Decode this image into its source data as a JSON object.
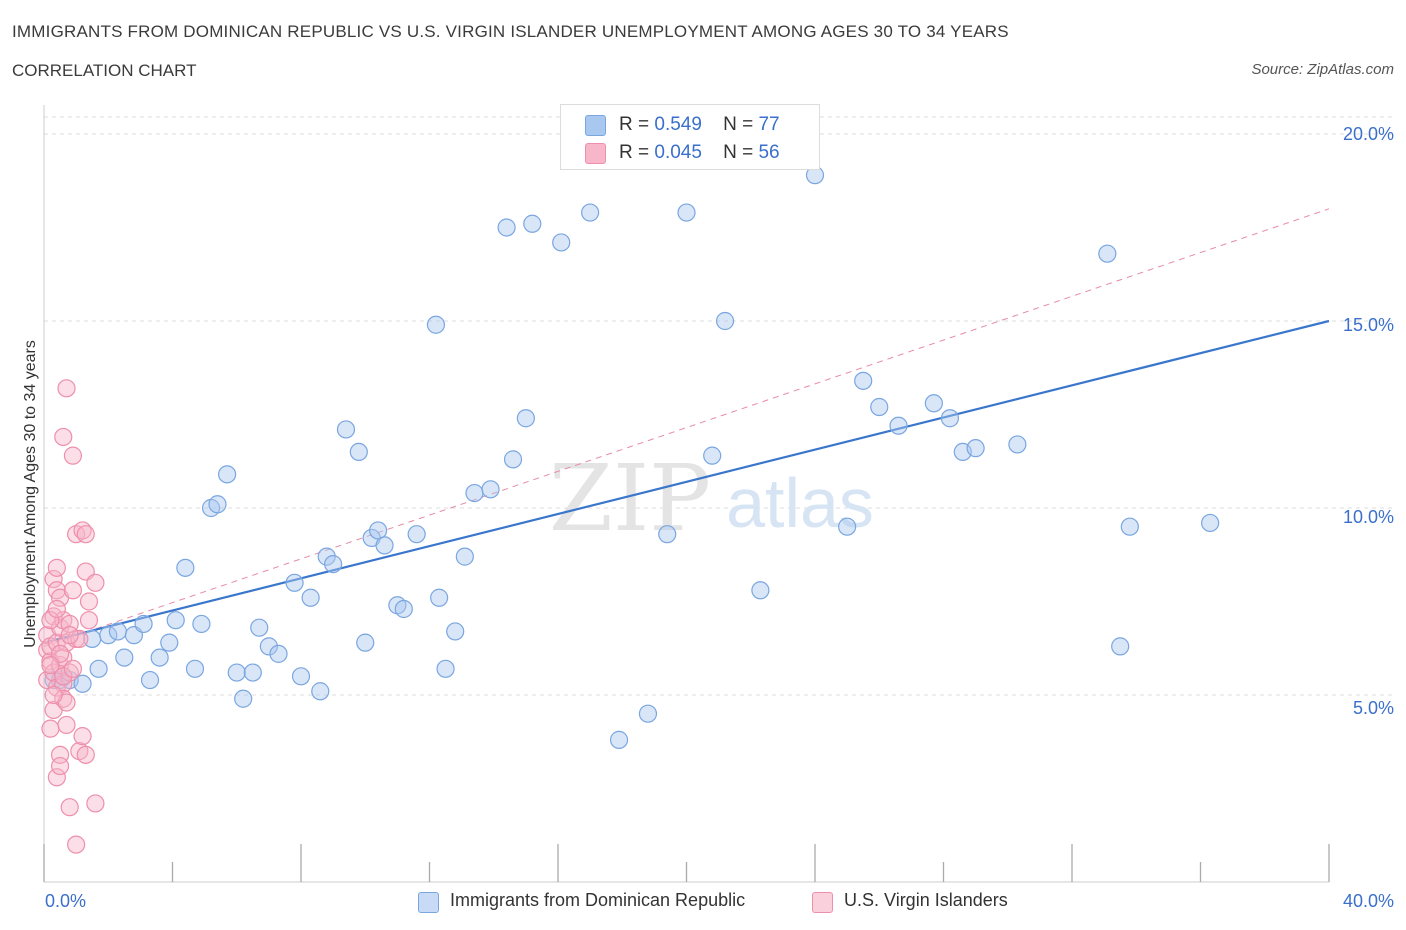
{
  "header": {
    "title": "IMMIGRANTS FROM DOMINICAN REPUBLIC VS U.S. VIRGIN ISLANDER UNEMPLOYMENT AMONG AGES 30 TO 34 YEARS",
    "subtitle": "CORRELATION CHART",
    "source": "Source: ZipAtlas.com"
  },
  "watermark": {
    "zip": "ZIP",
    "atlas": "atlas"
  },
  "legend_top": [
    {
      "r_label": "R =",
      "r_value": "0.549",
      "n_label": "N =",
      "n_value": "77",
      "color": "#a9c8f0"
    },
    {
      "r_label": "R =",
      "r_value": "0.045",
      "n_label": "N =",
      "n_value": "56",
      "color": "#f7b6c9"
    }
  ],
  "legend_bottom": [
    {
      "label": "Immigrants from Dominican Republic",
      "color": "#a9c8f0"
    },
    {
      "label": "U.S. Virgin Islanders",
      "color": "#f7b6c9"
    }
  ],
  "colors": {
    "blue_fill": "#a9c8f0",
    "blue_stroke": "#7aa6e0",
    "blue_line": "#3a77cc",
    "pink_fill": "#f7b6c9",
    "pink_stroke": "#ee8fab",
    "pink_line": "#e88aa5",
    "grid": "#dddddd",
    "tick_text": "#3a6fcc"
  },
  "chart_data": {
    "type": "scatter",
    "title": "IMMIGRANTS FROM DOMINICAN REPUBLIC VS U.S. VIRGIN ISLANDER UNEMPLOYMENT AMONG AGES 30 TO 34 YEARS",
    "xlabel": "",
    "ylabel": "Unemployment Among Ages 30 to 34 years",
    "xlim": [
      0,
      40
    ],
    "ylim": [
      0,
      20
    ],
    "x_tick_labels": [
      "0.0%",
      "40.0%"
    ],
    "y_ticks": [
      5,
      10,
      15,
      20
    ],
    "y_tick_labels": [
      "5.0%",
      "10.0%",
      "15.0%",
      "20.0%"
    ],
    "grid": "horizontal dashed",
    "legend_placement": "top-center and bottom",
    "series": [
      {
        "name": "Immigrants from Dominican Republic",
        "trend": {
          "x": [
            0,
            40
          ],
          "y": [
            6.4,
            15.0
          ],
          "style": "solid"
        },
        "points": [
          [
            0.3,
            5.4
          ],
          [
            0.5,
            5.4
          ],
          [
            0.6,
            5.5
          ],
          [
            0.8,
            5.4
          ],
          [
            1.2,
            5.3
          ],
          [
            1.5,
            6.5
          ],
          [
            1.7,
            5.7
          ],
          [
            2.0,
            6.6
          ],
          [
            2.3,
            6.7
          ],
          [
            2.5,
            6.0
          ],
          [
            2.8,
            6.6
          ],
          [
            3.1,
            6.9
          ],
          [
            3.3,
            5.4
          ],
          [
            3.6,
            6.0
          ],
          [
            3.9,
            6.4
          ],
          [
            4.1,
            7.0
          ],
          [
            4.4,
            8.4
          ],
          [
            4.7,
            5.7
          ],
          [
            4.9,
            6.9
          ],
          [
            5.2,
            10.0
          ],
          [
            5.4,
            10.1
          ],
          [
            5.7,
            10.9
          ],
          [
            6.0,
            5.6
          ],
          [
            6.2,
            4.9
          ],
          [
            6.5,
            5.6
          ],
          [
            6.7,
            6.8
          ],
          [
            7.0,
            6.3
          ],
          [
            7.3,
            6.1
          ],
          [
            7.8,
            8.0
          ],
          [
            8.0,
            5.5
          ],
          [
            8.3,
            7.6
          ],
          [
            8.6,
            5.1
          ],
          [
            8.8,
            8.7
          ],
          [
            9.0,
            8.5
          ],
          [
            9.4,
            12.1
          ],
          [
            9.8,
            11.5
          ],
          [
            10.0,
            6.4
          ],
          [
            10.2,
            9.2
          ],
          [
            10.4,
            9.4
          ],
          [
            10.6,
            9.0
          ],
          [
            11.0,
            7.4
          ],
          [
            11.2,
            7.3
          ],
          [
            11.6,
            9.3
          ],
          [
            12.2,
            14.9
          ],
          [
            12.3,
            7.6
          ],
          [
            12.5,
            5.7
          ],
          [
            12.8,
            6.7
          ],
          [
            13.1,
            8.7
          ],
          [
            13.4,
            10.4
          ],
          [
            13.9,
            10.5
          ],
          [
            14.4,
            17.5
          ],
          [
            14.6,
            11.3
          ],
          [
            15.0,
            12.4
          ],
          [
            15.2,
            17.6
          ],
          [
            16.1,
            17.1
          ],
          [
            17.0,
            17.9
          ],
          [
            17.9,
            3.8
          ],
          [
            18.8,
            4.5
          ],
          [
            19.4,
            9.3
          ],
          [
            20.0,
            17.9
          ],
          [
            20.8,
            11.4
          ],
          [
            21.2,
            15.0
          ],
          [
            22.3,
            7.8
          ],
          [
            24.0,
            18.9
          ],
          [
            25.0,
            9.5
          ],
          [
            25.5,
            13.4
          ],
          [
            26.0,
            12.7
          ],
          [
            26.6,
            12.2
          ],
          [
            27.7,
            12.8
          ],
          [
            28.2,
            12.4
          ],
          [
            28.6,
            11.5
          ],
          [
            29.0,
            11.6
          ],
          [
            30.3,
            11.7
          ],
          [
            33.1,
            16.8
          ],
          [
            33.5,
            6.3
          ],
          [
            33.8,
            9.5
          ],
          [
            36.3,
            9.6
          ]
        ]
      },
      {
        "name": "U.S. Virgin Islanders",
        "trend": {
          "x": [
            0,
            40
          ],
          "y": [
            6.3,
            18.0
          ],
          "style": "dashed"
        },
        "points": [
          [
            0.1,
            5.4
          ],
          [
            0.1,
            6.2
          ],
          [
            0.1,
            6.6
          ],
          [
            0.2,
            5.9
          ],
          [
            0.2,
            6.3
          ],
          [
            0.2,
            4.1
          ],
          [
            0.3,
            5.6
          ],
          [
            0.3,
            7.1
          ],
          [
            0.3,
            8.1
          ],
          [
            0.3,
            4.6
          ],
          [
            0.4,
            5.2
          ],
          [
            0.4,
            6.4
          ],
          [
            0.4,
            7.8
          ],
          [
            0.4,
            8.4
          ],
          [
            0.4,
            2.8
          ],
          [
            0.5,
            5.8
          ],
          [
            0.5,
            6.8
          ],
          [
            0.5,
            7.6
          ],
          [
            0.5,
            3.4
          ],
          [
            0.5,
            3.1
          ],
          [
            0.6,
            11.9
          ],
          [
            0.6,
            5.3
          ],
          [
            0.6,
            6.0
          ],
          [
            0.6,
            7.0
          ],
          [
            0.6,
            4.9
          ],
          [
            0.7,
            4.8
          ],
          [
            0.7,
            4.2
          ],
          [
            0.7,
            6.4
          ],
          [
            0.8,
            5.6
          ],
          [
            0.8,
            6.9
          ],
          [
            0.8,
            2.0
          ],
          [
            0.9,
            7.8
          ],
          [
            0.7,
            13.2
          ],
          [
            0.9,
            11.4
          ],
          [
            1.0,
            9.3
          ],
          [
            1.0,
            6.5
          ],
          [
            1.0,
            1.0
          ],
          [
            1.1,
            3.5
          ],
          [
            1.1,
            6.5
          ],
          [
            1.2,
            9.4
          ],
          [
            1.2,
            3.9
          ],
          [
            1.3,
            3.4
          ],
          [
            1.3,
            8.3
          ],
          [
            1.3,
            9.3
          ],
          [
            1.4,
            7.0
          ],
          [
            1.4,
            7.5
          ],
          [
            1.6,
            2.1
          ],
          [
            1.6,
            8.0
          ],
          [
            0.2,
            7.0
          ],
          [
            0.3,
            5.0
          ],
          [
            0.5,
            6.1
          ],
          [
            0.6,
            5.5
          ],
          [
            0.8,
            6.6
          ],
          [
            0.9,
            5.7
          ],
          [
            0.4,
            7.3
          ],
          [
            0.2,
            5.8
          ]
        ]
      }
    ]
  }
}
